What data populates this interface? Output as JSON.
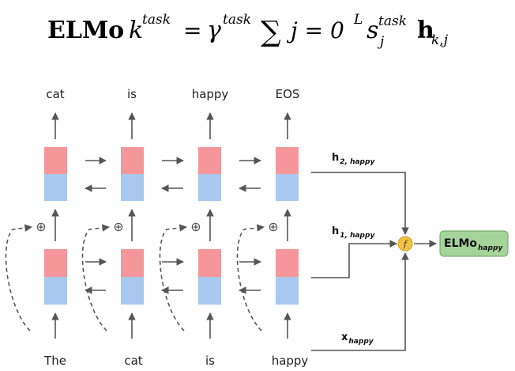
{
  "formula": {
    "lhs_bold": "ELMo",
    "lhs_var": "k",
    "sup_task": "task",
    "eq": "=",
    "gamma": "γ",
    "sum": "∑",
    "j_eq": "j = 0",
    "upper": "L",
    "s": "s",
    "sub_j": "j",
    "h_bold": "h",
    "sub_kj": "k,j"
  },
  "top_words": [
    "cat",
    "is",
    "happy",
    "EOS"
  ],
  "bottom_words": [
    "The",
    "cat",
    "is",
    "happy"
  ],
  "labels": {
    "h2": "h",
    "h2_sub": "2, happy",
    "h1": "h",
    "h1_sub": "1, happy",
    "x": "x",
    "x_sub": "happy",
    "f": "f",
    "plus": "⊕"
  },
  "output": {
    "label": "ELMo",
    "sub": "happy"
  },
  "colors": {
    "top_half": "#f4969a",
    "bottom_half": "#a8c8f0",
    "f_node": "#f5c242",
    "output_box": "#a5d49a",
    "arrow": "#555555"
  }
}
